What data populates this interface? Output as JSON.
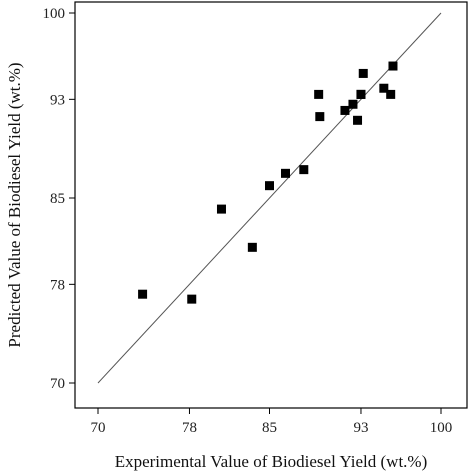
{
  "chart_data": {
    "type": "scatter",
    "xlabel": "Experimental Value of Biodiesel Yield (wt.%)",
    "ylabel": "Predicted Value of Biodiesel Yield (wt.%)",
    "xlim": [
      70,
      100
    ],
    "ylim": [
      70,
      100
    ],
    "xticks": [
      70,
      78,
      85,
      93,
      100
    ],
    "yticks": [
      70,
      78,
      85,
      93,
      100
    ],
    "grid": false,
    "reference_line": {
      "from": [
        70,
        70
      ],
      "to": [
        100,
        100
      ],
      "color": "#555555"
    },
    "marker_color": "#000000",
    "x": [
      73.9,
      78.2,
      80.8,
      83.5,
      85.0,
      86.4,
      88.0,
      89.3,
      89.4,
      91.6,
      92.3,
      92.7,
      93.0,
      93.0,
      93.2,
      95.0,
      95.6,
      95.8
    ],
    "y": [
      77.2,
      76.8,
      84.1,
      81.0,
      86.0,
      87.0,
      87.3,
      93.4,
      91.6,
      92.1,
      92.6,
      91.3,
      93.4,
      93.4,
      95.1,
      93.9,
      93.4,
      95.7
    ]
  }
}
